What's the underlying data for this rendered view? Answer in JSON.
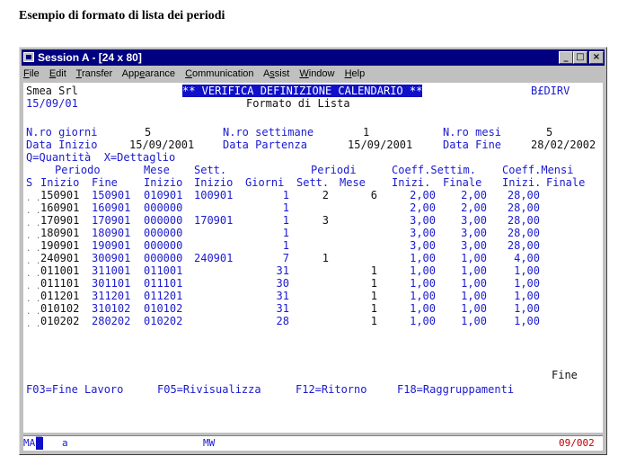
{
  "caption": "Esempio di formato di lista dei periodi",
  "window": {
    "title": "Session A - [24 x 80]"
  },
  "menu": [
    "File",
    "Edit",
    "Transfer",
    "Appearance",
    "Communication",
    "Assist",
    "Window",
    "Help"
  ],
  "header": {
    "company": "Smea Srl",
    "date": "15/09/01",
    "title": "** VERIFICA DEFINIZIONE CALENDARIO **",
    "program": "B£DIRV",
    "subtitle": "Formato di Lista"
  },
  "summary": {
    "giorni_label": "N.ro giorni",
    "giorni_value": "5",
    "settimane_label": "N.ro settimane",
    "settimane_value": "1",
    "mesi_label": "N.ro mesi",
    "mesi_value": "5",
    "inizio_label": "Data Inizio",
    "inizio_value": "15/09/2001",
    "partenza_label": "Data Partenza",
    "partenza_value": "15/09/2001",
    "fine_label": "Data Fine",
    "fine_value": "28/02/2002",
    "legend": "Q=Quantità  X=Dettaglio"
  },
  "columns": {
    "row1": [
      "Periodo",
      "Mese",
      "Sett.",
      "Periodi",
      "Coeff.Settim.",
      "Coeff.Mensi"
    ],
    "row2": [
      "S",
      "Inizio",
      "Fine",
      "Inizio",
      "Inizio",
      "Giorni",
      "Sett.",
      "Mese",
      "Inizi.",
      "Finale",
      "Inizi.",
      "Finale"
    ]
  },
  "rows": [
    {
      "inizio": "150901",
      "fine": "150901",
      "mese": "010901",
      "sett": "100901",
      "giorni": "1",
      "p_sett": "2",
      "p_mese": "6",
      "cs_i": "2,00",
      "cs_f": "2,00",
      "cm_i": "28,00"
    },
    {
      "inizio": "160901",
      "fine": "160901",
      "mese": "000000",
      "sett": "",
      "giorni": "1",
      "p_sett": "",
      "p_mese": "",
      "cs_i": "2,00",
      "cs_f": "2,00",
      "cm_i": "28,00"
    },
    {
      "inizio": "170901",
      "fine": "170901",
      "mese": "000000",
      "sett": "170901",
      "giorni": "1",
      "p_sett": "3",
      "p_mese": "",
      "cs_i": "3,00",
      "cs_f": "3,00",
      "cm_i": "28,00"
    },
    {
      "inizio": "180901",
      "fine": "180901",
      "mese": "000000",
      "sett": "",
      "giorni": "1",
      "p_sett": "",
      "p_mese": "",
      "cs_i": "3,00",
      "cs_f": "3,00",
      "cm_i": "28,00"
    },
    {
      "inizio": "190901",
      "fine": "190901",
      "mese": "000000",
      "sett": "",
      "giorni": "1",
      "p_sett": "",
      "p_mese": "",
      "cs_i": "3,00",
      "cs_f": "3,00",
      "cm_i": "28,00"
    },
    {
      "inizio": "240901",
      "fine": "300901",
      "mese": "000000",
      "sett": "240901",
      "giorni": "7",
      "p_sett": "1",
      "p_mese": "",
      "cs_i": "1,00",
      "cs_f": "1,00",
      "cm_i": "4,00"
    },
    {
      "inizio": "011001",
      "fine": "311001",
      "mese": "011001",
      "sett": "",
      "giorni": "31",
      "p_sett": "",
      "p_mese": "1",
      "cs_i": "1,00",
      "cs_f": "1,00",
      "cm_i": "1,00"
    },
    {
      "inizio": "011101",
      "fine": "301101",
      "mese": "011101",
      "sett": "",
      "giorni": "30",
      "p_sett": "",
      "p_mese": "1",
      "cs_i": "1,00",
      "cs_f": "1,00",
      "cm_i": "1,00"
    },
    {
      "inizio": "011201",
      "fine": "311201",
      "mese": "011201",
      "sett": "",
      "giorni": "31",
      "p_sett": "",
      "p_mese": "1",
      "cs_i": "1,00",
      "cs_f": "1,00",
      "cm_i": "1,00"
    },
    {
      "inizio": "010102",
      "fine": "310102",
      "mese": "010102",
      "sett": "",
      "giorni": "31",
      "p_sett": "",
      "p_mese": "1",
      "cs_i": "1,00",
      "cs_f": "1,00",
      "cm_i": "1,00"
    },
    {
      "inizio": "010202",
      "fine": "280202",
      "mese": "010202",
      "sett": "",
      "giorni": "28",
      "p_sett": "",
      "p_mese": "1",
      "cs_i": "1,00",
      "cs_f": "1,00",
      "cm_i": "1,00"
    }
  ],
  "fine_label": "Fine",
  "fkeys": [
    "F03=Fine Lavoro",
    "F05=Rivisualizza",
    "F12=Ritorno",
    "F18=Raggruppamenti"
  ],
  "status": {
    "left": "MA",
    "input": "a",
    "mode": "MW",
    "position": "09/002"
  }
}
